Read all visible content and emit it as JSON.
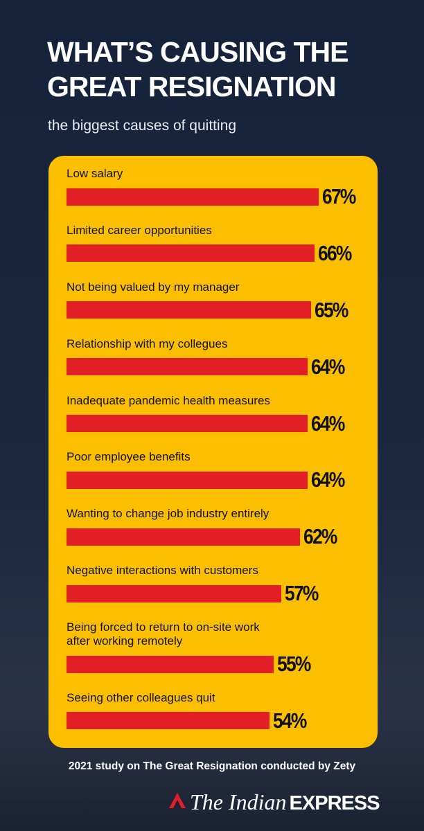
{
  "chart_data": {
    "type": "bar",
    "title": "WHAT’S CAUSING THE GREAT RESIGNATION",
    "subtitle": "the biggest causes of quitting",
    "categories": [
      "Low salary",
      "Limited career opportunities",
      "Not being valued by my manager",
      "Relationship with my collegues",
      "Inadequate pandemic health measures",
      "Poor employee benefits",
      "Wanting to change job industry entirely",
      "Negative interactions with customers",
      "Being forced to return to on-site work\nafter working remotely",
      "Seeing other colleagues quit"
    ],
    "values": [
      67,
      66,
      65,
      64,
      64,
      64,
      62,
      57,
      55,
      54
    ],
    "value_labels": [
      "67%",
      "66%",
      "65%",
      "64%",
      "64%",
      "64%",
      "62%",
      "57%",
      "55%",
      "54%"
    ],
    "color": "#e31f26",
    "source": "2021 study on The Great Resignation conducted by Zety",
    "brand": {
      "name": "The Indian",
      "emphasis": "EXPRESS"
    }
  }
}
